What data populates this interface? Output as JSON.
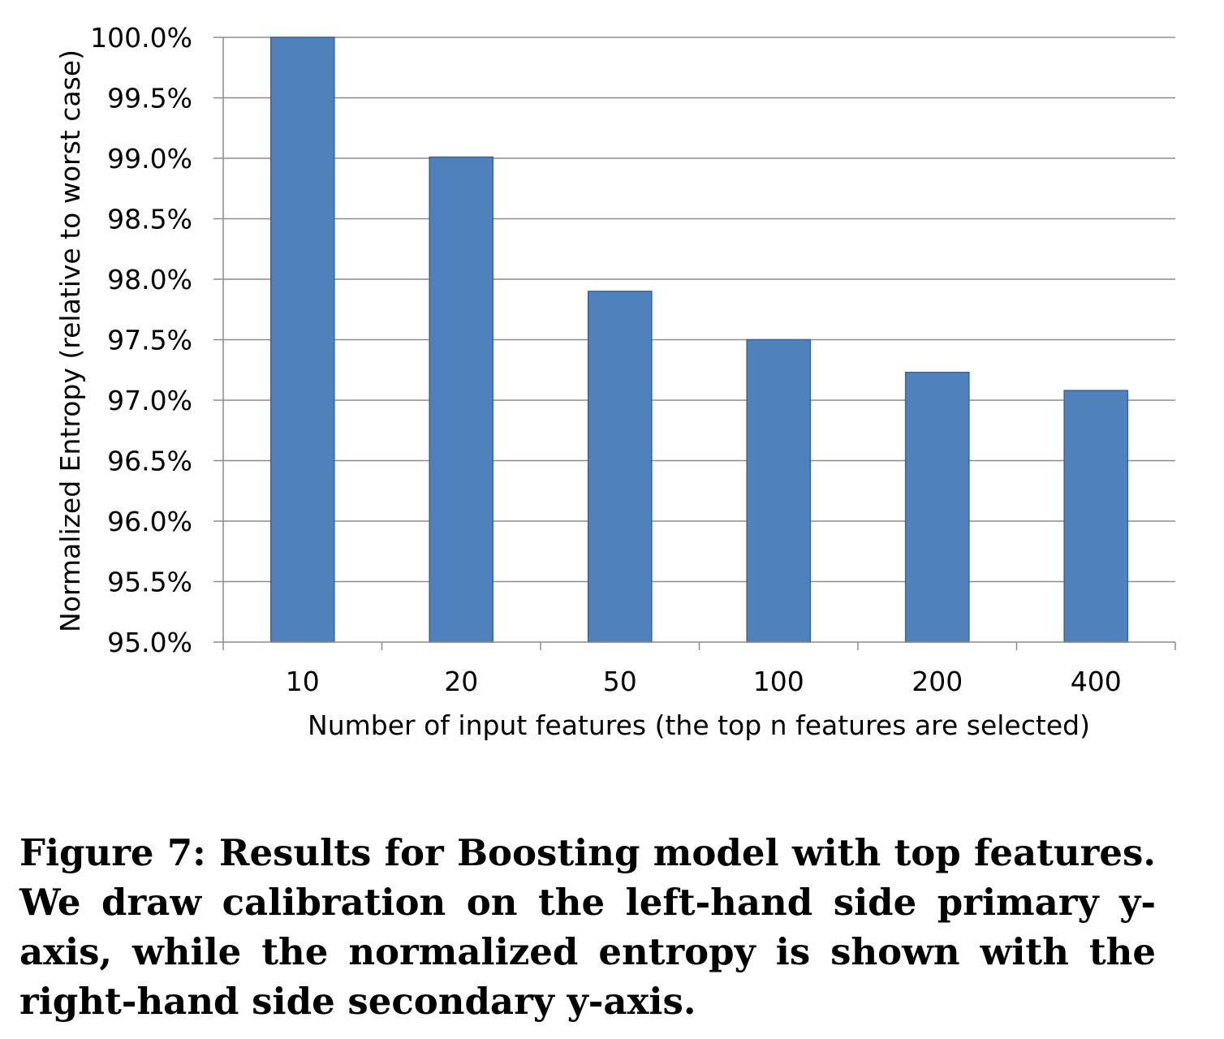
{
  "chart_data": {
    "type": "bar",
    "categories": [
      "10",
      "20",
      "50",
      "100",
      "200",
      "400"
    ],
    "values": [
      100.0,
      99.01,
      97.9,
      97.5,
      97.23,
      97.08
    ],
    "xlabel": "Number of input features (the top n features are selected)",
    "ylabel": "Normalized Entropy (relative to worst case)",
    "ylim": [
      95.0,
      100.0
    ],
    "yticks": [
      95.0,
      95.5,
      96.0,
      96.5,
      97.0,
      97.5,
      98.0,
      98.5,
      99.0,
      99.5,
      100.0
    ],
    "ytick_labels": [
      "95.0%",
      "95.5%",
      "96.0%",
      "96.5%",
      "97.0%",
      "97.5%",
      "98.0%",
      "98.5%",
      "99.0%",
      "99.5%",
      "100.0%"
    ],
    "grid": true,
    "legend": "none",
    "colors": {
      "bar_fill": "#4f81bd",
      "bar_stroke": "#3a6596",
      "grid": "#8c8c8c",
      "axis": "#8c8c8c"
    }
  },
  "caption": "Figure 7: Results for Boosting model with top features. We draw calibration on the left-hand side primary y-axis, while the normalized entropy is shown with the right-hand side secondary y-axis."
}
